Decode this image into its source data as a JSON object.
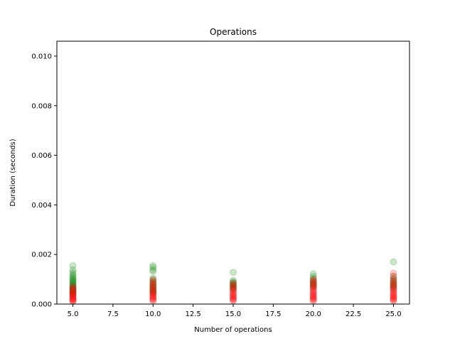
{
  "chart_data": {
    "type": "scatter",
    "title": "Operations",
    "xlabel": "Number of operations",
    "ylabel": "Duration (seconds)",
    "xlim": [
      4.0,
      26.0
    ],
    "ylim": [
      0.0,
      0.0106
    ],
    "xticks": [
      5.0,
      7.5,
      10.0,
      12.5,
      15.0,
      17.5,
      20.0,
      22.5,
      25.0
    ],
    "xtick_labels": [
      "5.0",
      "7.5",
      "10.0",
      "12.5",
      "15.0",
      "17.5",
      "20.0",
      "22.5",
      "25.0"
    ],
    "yticks": [
      0.0,
      0.002,
      0.004,
      0.006,
      0.008,
      0.01
    ],
    "ytick_labels": [
      "0.000",
      "0.002",
      "0.004",
      "0.006",
      "0.008",
      "0.010"
    ],
    "grid": false,
    "marker_alpha": 0.2,
    "series": [
      {
        "color": "#008000",
        "points": [
          [
            5,
            0.00155
          ],
          [
            5,
            0.00138
          ],
          [
            5,
            0.00128
          ],
          [
            5,
            0.0012
          ],
          [
            5,
            0.00114
          ],
          [
            5,
            0.00108
          ],
          [
            5,
            0.00102
          ],
          [
            5,
            0.00098
          ],
          [
            5,
            0.00094
          ],
          [
            5,
            0.0009
          ],
          [
            5,
            0.00086
          ],
          [
            5,
            0.00082
          ],
          [
            5,
            0.00078
          ],
          [
            5,
            0.00074
          ],
          [
            5,
            0.0007
          ],
          [
            5,
            0.00066
          ],
          [
            5,
            0.00062
          ],
          [
            5,
            0.00058
          ],
          [
            5,
            0.00054
          ],
          [
            5,
            0.0005
          ],
          [
            5,
            0.00046
          ],
          [
            5,
            0.00042
          ],
          [
            5,
            0.00038
          ],
          [
            10,
            0.00155
          ],
          [
            10,
            0.00148
          ],
          [
            10,
            0.00138
          ],
          [
            10,
            0.00132
          ],
          [
            10,
            0.00105
          ],
          [
            10,
            0.00098
          ],
          [
            10,
            0.0009
          ],
          [
            10,
            0.00084
          ],
          [
            10,
            0.00078
          ],
          [
            10,
            0.00072
          ],
          [
            10,
            0.00066
          ],
          [
            10,
            0.0006
          ],
          [
            10,
            0.00055
          ],
          [
            10,
            0.0005
          ],
          [
            10,
            0.00045
          ],
          [
            15,
            0.00128
          ],
          [
            15,
            0.00095
          ],
          [
            15,
            0.0009
          ],
          [
            15,
            0.00085
          ],
          [
            15,
            0.0008
          ],
          [
            15,
            0.00075
          ],
          [
            15,
            0.0007
          ],
          [
            15,
            0.00065
          ],
          [
            15,
            0.0006
          ],
          [
            20,
            0.00122
          ],
          [
            20,
            0.00112
          ],
          [
            20,
            0.00104
          ],
          [
            20,
            0.00096
          ],
          [
            20,
            0.0009
          ],
          [
            20,
            0.00085
          ],
          [
            20,
            0.0008
          ],
          [
            20,
            0.00075
          ],
          [
            20,
            0.0007
          ],
          [
            25,
            0.0017
          ],
          [
            25,
            0.00112
          ],
          [
            25,
            0.00102
          ],
          [
            25,
            0.00094
          ],
          [
            25,
            0.00088
          ],
          [
            25,
            0.00082
          ],
          [
            25,
            0.00076
          ],
          [
            25,
            0.0007
          ],
          [
            25,
            0.00064
          ]
        ]
      },
      {
        "color": "#ff0000",
        "points": [
          [
            5,
            0.00072
          ],
          [
            5,
            0.00066
          ],
          [
            5,
            0.0006
          ],
          [
            5,
            0.00055
          ],
          [
            5,
            0.0005
          ],
          [
            5,
            0.00046
          ],
          [
            5,
            0.00042
          ],
          [
            5,
            0.00038
          ],
          [
            5,
            0.00034
          ],
          [
            5,
            0.0003
          ],
          [
            5,
            0.00027
          ],
          [
            5,
            0.00024
          ],
          [
            5,
            0.00021
          ],
          [
            5,
            0.00018
          ],
          [
            5,
            0.00015
          ],
          [
            5,
            0.00012
          ],
          [
            5,
            0.0001
          ],
          [
            10,
            0.00098
          ],
          [
            10,
            0.0009
          ],
          [
            10,
            0.00082
          ],
          [
            10,
            0.00076
          ],
          [
            10,
            0.0007
          ],
          [
            10,
            0.00064
          ],
          [
            10,
            0.00058
          ],
          [
            10,
            0.00053
          ],
          [
            10,
            0.00048
          ],
          [
            10,
            0.00044
          ],
          [
            10,
            0.0004
          ],
          [
            10,
            0.00036
          ],
          [
            10,
            0.00032
          ],
          [
            10,
            0.00028
          ],
          [
            10,
            0.00024
          ],
          [
            10,
            0.0002
          ],
          [
            10,
            0.00016
          ],
          [
            10,
            0.00012
          ],
          [
            15,
            0.00085
          ],
          [
            15,
            0.00078
          ],
          [
            15,
            0.00072
          ],
          [
            15,
            0.00066
          ],
          [
            15,
            0.0006
          ],
          [
            15,
            0.00055
          ],
          [
            15,
            0.0005
          ],
          [
            15,
            0.00045
          ],
          [
            15,
            0.0004
          ],
          [
            15,
            0.00036
          ],
          [
            15,
            0.00032
          ],
          [
            15,
            0.00028
          ],
          [
            15,
            0.00024
          ],
          [
            15,
            0.0002
          ],
          [
            15,
            0.00016
          ],
          [
            15,
            0.00012
          ],
          [
            20,
            0.001
          ],
          [
            20,
            0.00094
          ],
          [
            20,
            0.00088
          ],
          [
            20,
            0.00082
          ],
          [
            20,
            0.00076
          ],
          [
            20,
            0.0007
          ],
          [
            20,
            0.00065
          ],
          [
            20,
            0.0006
          ],
          [
            20,
            0.00055
          ],
          [
            20,
            0.0005
          ],
          [
            20,
            0.00045
          ],
          [
            20,
            0.0004
          ],
          [
            20,
            0.00036
          ],
          [
            20,
            0.00032
          ],
          [
            20,
            0.00028
          ],
          [
            20,
            0.00024
          ],
          [
            20,
            0.0002
          ],
          [
            20,
            0.00016
          ],
          [
            20,
            0.00012
          ],
          [
            25,
            0.00125
          ],
          [
            25,
            0.00112
          ],
          [
            25,
            0.001
          ],
          [
            25,
            0.00092
          ],
          [
            25,
            0.00084
          ],
          [
            25,
            0.00078
          ],
          [
            25,
            0.00072
          ],
          [
            25,
            0.00066
          ],
          [
            25,
            0.0006
          ],
          [
            25,
            0.00055
          ],
          [
            25,
            0.0005
          ],
          [
            25,
            0.00045
          ],
          [
            25,
            0.0004
          ],
          [
            25,
            0.00036
          ],
          [
            25,
            0.00032
          ],
          [
            25,
            0.00028
          ],
          [
            25,
            0.00024
          ],
          [
            25,
            0.0002
          ],
          [
            25,
            0.00016
          ],
          [
            25,
            0.00012
          ]
        ]
      }
    ]
  }
}
